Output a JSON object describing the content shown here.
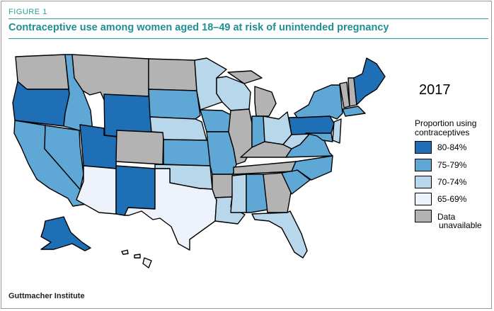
{
  "figure_label": "FIGURE 1",
  "title": "Contraceptive use among women aged 18–49 at risk of unintended pregnancy",
  "year": "2017",
  "legend": {
    "title_line1": "Proportion using",
    "title_line2": "contraceptives",
    "items": [
      {
        "key": "80-84",
        "label": "80-84%",
        "color": "#1f6fb6"
      },
      {
        "key": "75-79",
        "label": "75-79%",
        "color": "#5fa8d6"
      },
      {
        "key": "70-74",
        "label": "70-74%",
        "color": "#b9d7ea"
      },
      {
        "key": "65-69",
        "label": "65-69%",
        "color": "#eef3fb"
      },
      {
        "key": "na",
        "label_line1": "Data",
        "label_line2": "unavailable",
        "color": "#b3b3b3"
      }
    ]
  },
  "source": "Guttmacher Institute",
  "map_data": {
    "WA": "na",
    "OR": "80-84",
    "CA": "75-79",
    "NV": "75-79",
    "ID": "75-79",
    "MT": "na",
    "WY": "80-84",
    "UT": "80-84",
    "AZ": "65-69",
    "CO": "na",
    "NM": "80-84",
    "ND": "na",
    "SD": "75-79",
    "NE": "70-74",
    "KS": "75-79",
    "OK": "70-74",
    "TX": "65-69",
    "MN": "70-74",
    "IA": "75-79",
    "MO": "75-79",
    "AR": "na",
    "LA": "70-74",
    "WI": "70-74",
    "IL": "na",
    "MI": "na",
    "IN": "75-79",
    "OH": "70-74",
    "KY": "na",
    "TN": "na",
    "MS": "70-74",
    "AL": "75-79",
    "GA": "na",
    "FL": "70-74",
    "SC": "75-79",
    "NC": "75-79",
    "VA": "75-79",
    "WV": "70-74",
    "PA": "80-84",
    "NY": "75-79",
    "ME": "80-84",
    "VT": "na",
    "NH": "na",
    "MA": "75-79",
    "NJ": "70-74",
    "MD": "75-79",
    "AK": "80-84",
    "HI": "65-69"
  }
}
